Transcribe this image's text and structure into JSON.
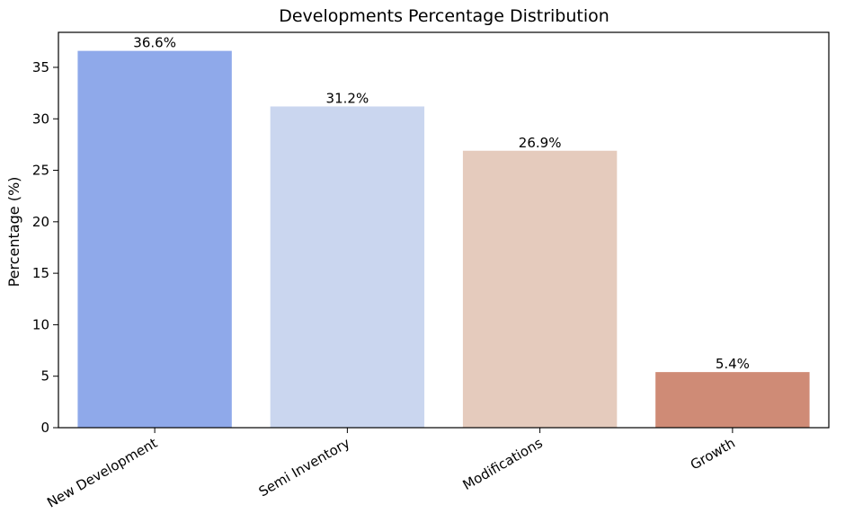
{
  "chart_data": {
    "type": "bar",
    "title": "Developments Percentage Distribution",
    "xlabel": "",
    "ylabel": "Percentage (%)",
    "categories": [
      "New Development",
      "Semi Inventory",
      "Modifications",
      "Growth"
    ],
    "values": [
      36.6,
      31.2,
      26.9,
      5.4
    ],
    "value_labels": [
      "36.6%",
      "31.2%",
      "26.9%",
      "5.4%"
    ],
    "colors": [
      "#8fa9ea",
      "#cad6ef",
      "#e5cbbd",
      "#cf8b76"
    ],
    "ylim": [
      0,
      38.4
    ],
    "yticks": [
      0,
      5,
      10,
      15,
      20,
      25,
      30,
      35
    ],
    "ytick_labels": [
      "0",
      "5",
      "10",
      "15",
      "20",
      "25",
      "30",
      "35"
    ],
    "grid": false,
    "legend": "none"
  }
}
